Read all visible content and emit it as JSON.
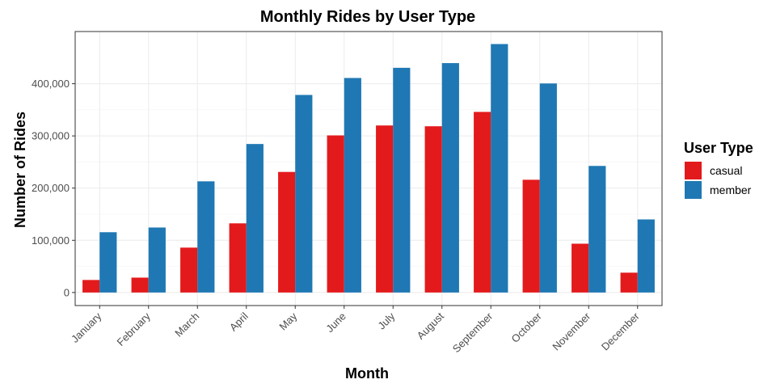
{
  "chart_data": {
    "type": "bar",
    "title": "Monthly Rides by User Type",
    "xlabel": "Month",
    "ylabel": "Number of Rides",
    "categories": [
      "January",
      "February",
      "March",
      "April",
      "May",
      "June",
      "July",
      "August",
      "September",
      "October",
      "November",
      "December"
    ],
    "series": [
      {
        "name": "casual",
        "color": "#e31a1c",
        "values": [
          24000,
          28500,
          86000,
          132500,
          231000,
          301000,
          320000,
          318500,
          346000,
          216000,
          93500,
          38000
        ]
      },
      {
        "name": "member",
        "color": "#1f78b4",
        "values": [
          115500,
          124500,
          213000,
          284500,
          378500,
          411000,
          430500,
          439500,
          476000,
          400500,
          242500,
          140000
        ]
      }
    ],
    "ylim": [
      -25000,
      500000
    ],
    "yticks": [
      0,
      100000,
      200000,
      300000,
      400000
    ],
    "ytick_labels": [
      "0",
      "100,000",
      "200,000",
      "300,000",
      "400,000"
    ],
    "legend": {
      "title": "User Type",
      "position": "right"
    },
    "grid": true
  }
}
